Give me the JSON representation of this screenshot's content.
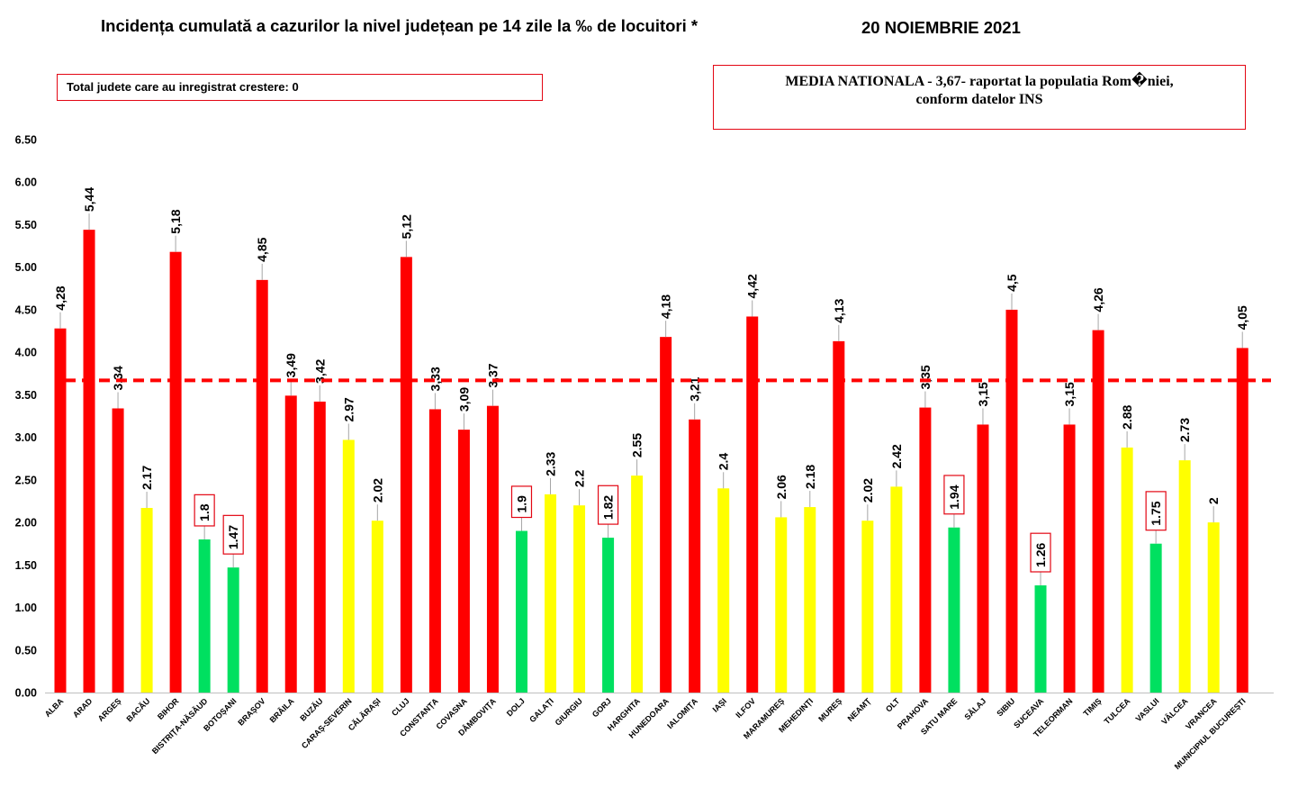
{
  "header": {
    "title": "Incidența cumulată a cazurilor la nivel județean pe 14 zile la ‰ de locuitori *",
    "date": "20 NOIEMBRIE 2021"
  },
  "boxes": {
    "total_text": "Total judete care au inregistrat crestere: 0",
    "media_line1": "MEDIA NATIONALA - 3,67-  raportat la populatia  Rom�niei,",
    "media_line2": "conform datelor INS"
  },
  "colors": {
    "red": "#ff0000",
    "yellow": "#ffff00",
    "green": "#00e060",
    "box_border": "#e30613",
    "average_line": "#ff0000"
  },
  "chart_data": {
    "type": "bar",
    "ylim": [
      0,
      6.5
    ],
    "yticks": [
      "0.00",
      "0.50",
      "1.00",
      "1.50",
      "2.00",
      "2.50",
      "3.00",
      "3.50",
      "4.00",
      "4.50",
      "5.00",
      "5.50",
      "6.00",
      "6.50"
    ],
    "average_value": 3.67,
    "grid": false,
    "categories": [
      "ALBA",
      "ARAD",
      "ARGEȘ",
      "BACĂU",
      "BIHOR",
      "BISTRIȚA-NĂSĂUD",
      "BOTOȘANI",
      "BRAȘOV",
      "BRĂILA",
      "BUZĂU",
      "CARAȘ-SEVERIN",
      "CĂLĂRAȘI",
      "CLUJ",
      "CONSTANȚA",
      "COVASNA",
      "DÂMBOVIȚA",
      "DOLJ",
      "GALAȚI",
      "GIURGIU",
      "GORJ",
      "HARGHITA",
      "HUNEDOARA",
      "IALOMIȚA",
      "IAȘI",
      "ILFOV",
      "MARAMUREȘ",
      "MEHEDINȚI",
      "MUREȘ",
      "NEAMȚ",
      "OLT",
      "PRAHOVA",
      "SATU MARE",
      "SĂLAJ",
      "SIBIU",
      "SUCEAVA",
      "TELEORMAN",
      "TIMIȘ",
      "TULCEA",
      "VASLUI",
      "VÂLCEA",
      "VRANCEA",
      "MUNICIPIUL BUCUREȘTI"
    ],
    "values": [
      4.28,
      5.44,
      3.34,
      2.17,
      5.18,
      1.8,
      1.47,
      4.85,
      3.49,
      3.42,
      2.97,
      2.02,
      5.12,
      3.33,
      3.09,
      3.37,
      1.9,
      2.33,
      2.2,
      1.82,
      2.55,
      4.18,
      3.21,
      2.4,
      4.42,
      2.06,
      2.18,
      4.13,
      2.02,
      2.42,
      3.35,
      1.94,
      3.15,
      4.5,
      1.26,
      3.15,
      4.26,
      2.88,
      1.75,
      2.73,
      2,
      4.05
    ],
    "labels": [
      "4,28",
      "5,44",
      "3,34",
      "2.17",
      "5,18",
      "1.8",
      "1.47",
      "4,85",
      "3,49",
      "3,42",
      "2.97",
      "2.02",
      "5,12",
      "3,33",
      "3,09",
      "3,37",
      "1.9",
      "2.33",
      "2.2",
      "1.82",
      "2.55",
      "4,18",
      "3,21",
      "2.4",
      "4,42",
      "2.06",
      "2.18",
      "4,13",
      "2.02",
      "2.42",
      "3,35",
      "1.94",
      "3,15",
      "4,5",
      "1.26",
      "3,15",
      "4,26",
      "2.88",
      "1.75",
      "2.73",
      "2",
      "4,05"
    ],
    "bar_colors": [
      "red",
      "red",
      "red",
      "yellow",
      "red",
      "green",
      "green",
      "red",
      "red",
      "red",
      "yellow",
      "yellow",
      "red",
      "red",
      "red",
      "red",
      "green",
      "yellow",
      "yellow",
      "green",
      "yellow",
      "red",
      "red",
      "yellow",
      "red",
      "yellow",
      "yellow",
      "red",
      "yellow",
      "yellow",
      "red",
      "green",
      "red",
      "red",
      "green",
      "red",
      "red",
      "yellow",
      "green",
      "yellow",
      "yellow",
      "red"
    ],
    "boxed_labels": [
      5,
      6,
      16,
      19,
      31,
      34,
      38
    ]
  }
}
